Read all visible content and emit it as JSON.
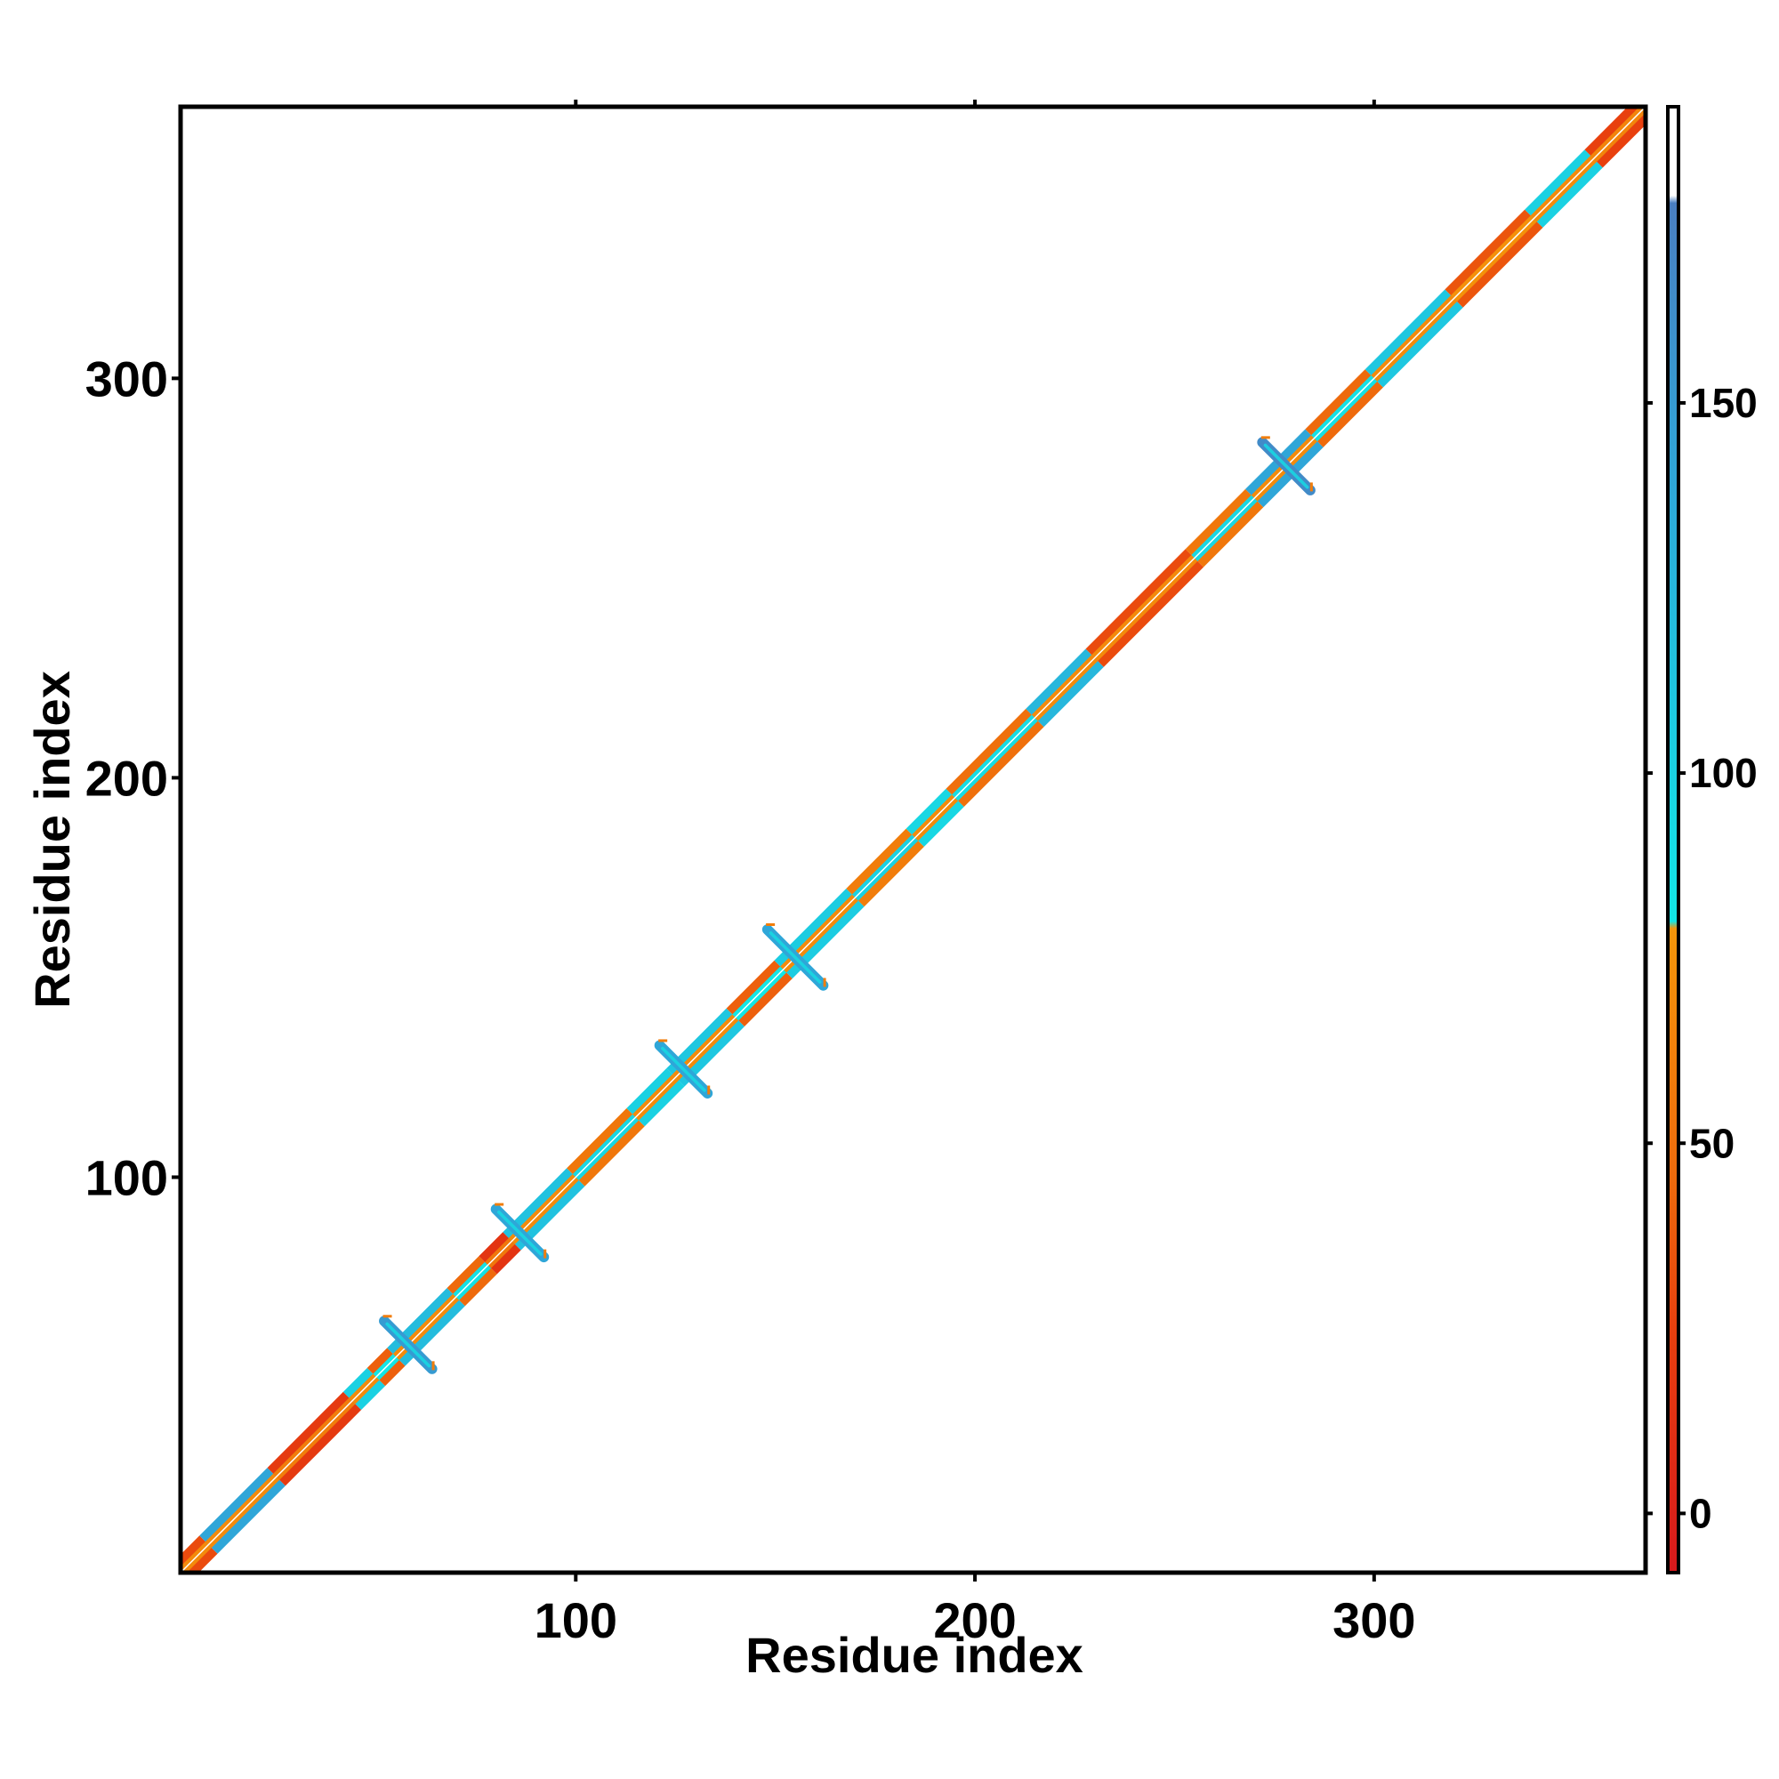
{
  "chart_data": {
    "type": "heatmap",
    "title": "",
    "xlabel": "Residue index",
    "ylabel": "Residue index",
    "xlim": [
      1,
      368
    ],
    "ylim": [
      1,
      368
    ],
    "x_ticks": [
      100,
      200,
      300
    ],
    "y_ticks": [
      100,
      200,
      300
    ],
    "grid": false,
    "legend": "colorbar-right",
    "colorbar": {
      "range": [
        -8,
        190
      ],
      "ticks": [
        0,
        50,
        100,
        150
      ],
      "levels": [
        {
          "from": -8,
          "to": 30,
          "color": "#d7191c"
        },
        {
          "from": 30,
          "to": 80,
          "color": "#f07c0f"
        },
        {
          "from": 80,
          "to": 178,
          "color": "#1ecfe0"
        },
        {
          "from": 178,
          "to": 190,
          "color": "#ffffff"
        }
      ],
      "gradient_stops": [
        {
          "value": -8,
          "color": "#d7191c"
        },
        {
          "value": 25,
          "color": "#e8400e"
        },
        {
          "value": 45,
          "color": "#ee6a0c"
        },
        {
          "value": 79,
          "color": "#f5960a"
        },
        {
          "value": 80,
          "color": "#12e6e6"
        },
        {
          "value": 110,
          "color": "#1ec7e0"
        },
        {
          "value": 140,
          "color": "#2fa6d8"
        },
        {
          "value": 177,
          "color": "#4a7ec0"
        },
        {
          "value": 178,
          "color": "#ffffff"
        },
        {
          "value": 190,
          "color": "#ffffff"
        }
      ]
    },
    "diagonal_band": {
      "from": 1,
      "to": 368,
      "segments": [
        {
          "start": 1,
          "end": 8,
          "value": 30
        },
        {
          "start": 8,
          "end": 25,
          "value": 140
        },
        {
          "start": 25,
          "end": 44,
          "value": 20
        },
        {
          "start": 44,
          "end": 50,
          "value": 100
        },
        {
          "start": 50,
          "end": 55,
          "value": 40
        },
        {
          "start": 55,
          "end": 70,
          "value": 120
        },
        {
          "start": 70,
          "end": 78,
          "value": 45
        },
        {
          "start": 78,
          "end": 84,
          "value": 15
        },
        {
          "start": 84,
          "end": 100,
          "value": 115
        },
        {
          "start": 100,
          "end": 115,
          "value": 55
        },
        {
          "start": 115,
          "end": 125,
          "value": 100
        },
        {
          "start": 125,
          "end": 140,
          "value": 110
        },
        {
          "start": 140,
          "end": 152,
          "value": 40
        },
        {
          "start": 152,
          "end": 170,
          "value": 105
        },
        {
          "start": 170,
          "end": 185,
          "value": 60
        },
        {
          "start": 185,
          "end": 195,
          "value": 95
        },
        {
          "start": 195,
          "end": 215,
          "value": 50
        },
        {
          "start": 215,
          "end": 230,
          "value": 125
        },
        {
          "start": 230,
          "end": 255,
          "value": 30
        },
        {
          "start": 255,
          "end": 270,
          "value": 55
        },
        {
          "start": 270,
          "end": 285,
          "value": 140
        },
        {
          "start": 285,
          "end": 300,
          "value": 45
        },
        {
          "start": 300,
          "end": 320,
          "value": 110
        },
        {
          "start": 320,
          "end": 340,
          "value": 35
        },
        {
          "start": 340,
          "end": 355,
          "value": 100
        },
        {
          "start": 355,
          "end": 368,
          "value": 25
        }
      ]
    },
    "off_diagonal_crosses": [
      {
        "center": 58,
        "half_length": 6,
        "value": 150
      },
      {
        "center": 86,
        "half_length": 6,
        "value": 140
      },
      {
        "center": 127,
        "half_length": 6,
        "value": 140
      },
      {
        "center": 155,
        "half_length": 7,
        "value": 140
      },
      {
        "center": 278,
        "half_length": 6,
        "value": 165
      }
    ]
  }
}
